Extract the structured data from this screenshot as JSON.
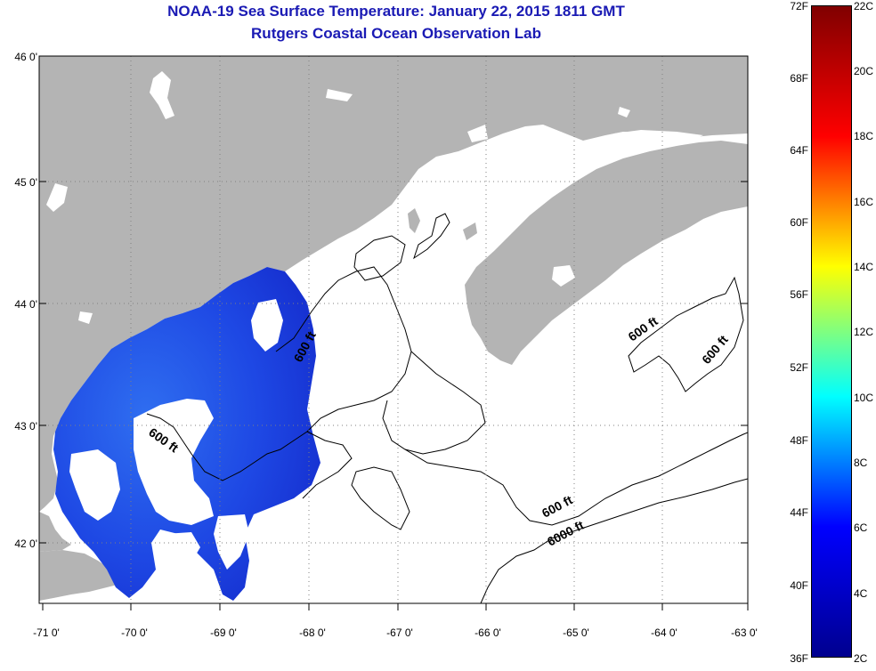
{
  "header": {
    "title": "NOAA-19 Sea Surface Temperature:  January 22, 2015 1811 GMT",
    "subtitle": "Rutgers Coastal Ocean Observation Lab"
  },
  "map": {
    "lat_labels": [
      "46 0'",
      "45 0'",
      "44 0'",
      "43 0'",
      "42 0'"
    ],
    "lon_labels": [
      "-71 0'",
      "-70 0'",
      "-69 0'",
      "-68 0'",
      "-67 0'",
      "-66 0'",
      "-65 0'",
      "-64 0'",
      "-63 0'"
    ],
    "contour_labels": [
      "600 ft",
      "600 ft",
      "600 ft",
      "600 ft",
      "600 ft",
      "6000 ft"
    ],
    "colors": {
      "land": "#b4b4b4",
      "ocean_no_data": "#ffffff",
      "cold_water": "#1e46e6",
      "title": "#1a1ab4"
    }
  },
  "colorbar": {
    "f_labels": [
      "72F",
      "68F",
      "64F",
      "60F",
      "56F",
      "52F",
      "48F",
      "44F",
      "40F",
      "36F"
    ],
    "c_labels": [
      "22C",
      "20C",
      "18C",
      "16C",
      "14C",
      "12C",
      "10C",
      "8C",
      "6C",
      "4C",
      "2C"
    ],
    "colors": [
      "#00008f",
      "#0000ff",
      "#00ffff",
      "#ffff00",
      "#ff0000",
      "#800000"
    ]
  }
}
